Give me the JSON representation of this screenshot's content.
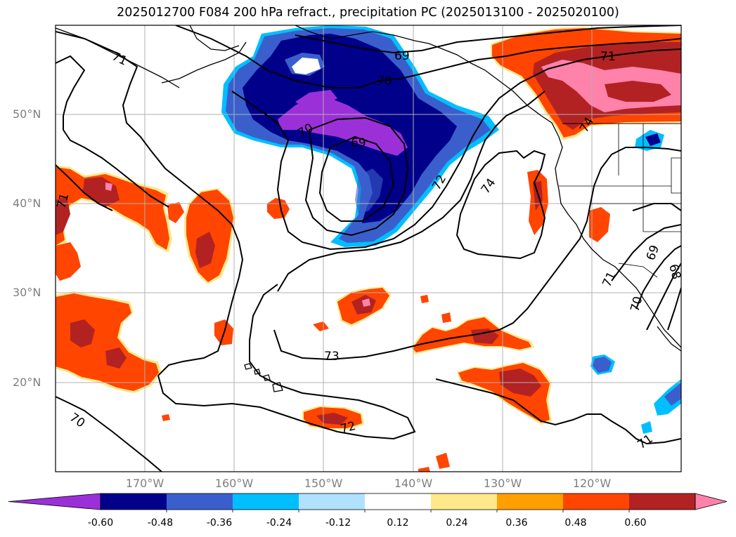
{
  "title": "2025012700 F084 200 hPa refract., precipitation PC (2025013100 - 2025020100)",
  "lat_labels": [
    "50°N",
    "40°N",
    "30°N",
    "20°N"
  ],
  "lon_labels": [
    "170°W",
    "160°W",
    "150°W",
    "140°W",
    "130°W",
    "120°W"
  ],
  "contour_labels": [
    "71",
    "69",
    "70",
    "70",
    "69",
    "72",
    "74",
    "71",
    "74",
    "69",
    "68",
    "71",
    "70",
    "73",
    "70",
    "72",
    "71"
  ],
  "colorbar": {
    "ticks": [
      "-0.60",
      "-0.48",
      "-0.36",
      "-0.24",
      "-0.12",
      "0.12",
      "0.24",
      "0.36",
      "0.48",
      "0.60"
    ],
    "colors": [
      "#9b30d9",
      "#00008b",
      "#3a5fcd",
      "#00bfff",
      "#b0e2ff",
      "#ffffff",
      "#ffe98a",
      "#ff9f00",
      "#ff4500",
      "#b22222",
      "#ff82ab"
    ]
  },
  "colors": {
    "ocean": "#ffffff",
    "land_outline": "#000000",
    "grid": "#b0b0b0",
    "contour": "#000000"
  }
}
